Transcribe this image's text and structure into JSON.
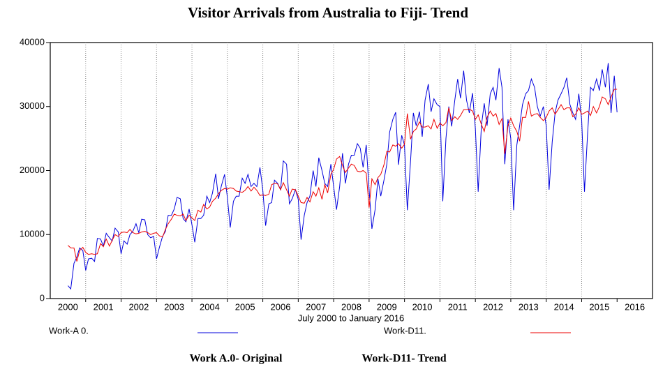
{
  "chart_data": {
    "type": "line",
    "title": "Visitor Arrivals from Australia to Fiji- Trend",
    "x_label": "July 2000  to January 2016",
    "captions": [
      "Work A.0- Original",
      "Work-D11- Trend"
    ],
    "legend": "bottom",
    "grid": true,
    "xlim": [
      2000,
      2017
    ],
    "xticks": [
      2000,
      2001,
      2002,
      2003,
      2004,
      2005,
      2006,
      2007,
      2008,
      2009,
      2010,
      2011,
      2012,
      2013,
      2014,
      2015,
      2016
    ],
    "ylim": [
      0,
      40000
    ],
    "yticks": [
      0,
      10000,
      20000,
      30000,
      40000
    ],
    "x": [
      2000.5,
      2000.58,
      2000.67,
      2000.75,
      2000.83,
      2000.92,
      2001,
      2001.08,
      2001.17,
      2001.25,
      2001.33,
      2001.42,
      2001.5,
      2001.58,
      2001.67,
      2001.75,
      2001.83,
      2001.92,
      2002,
      2002.08,
      2002.17,
      2002.25,
      2002.33,
      2002.42,
      2002.5,
      2002.58,
      2002.67,
      2002.75,
      2002.83,
      2002.92,
      2003,
      2003.08,
      2003.17,
      2003.25,
      2003.33,
      2003.42,
      2003.5,
      2003.58,
      2003.67,
      2003.75,
      2003.83,
      2003.92,
      2004,
      2004.08,
      2004.17,
      2004.25,
      2004.33,
      2004.42,
      2004.5,
      2004.58,
      2004.67,
      2004.75,
      2004.83,
      2004.92,
      2005,
      2005.08,
      2005.17,
      2005.25,
      2005.33,
      2005.42,
      2005.5,
      2005.58,
      2005.67,
      2005.75,
      2005.83,
      2005.92,
      2006,
      2006.08,
      2006.17,
      2006.25,
      2006.33,
      2006.42,
      2006.5,
      2006.58,
      2006.67,
      2006.75,
      2006.83,
      2006.92,
      2007,
      2007.08,
      2007.17,
      2007.25,
      2007.33,
      2007.42,
      2007.5,
      2007.58,
      2007.67,
      2007.75,
      2007.83,
      2007.92,
      2008,
      2008.08,
      2008.17,
      2008.25,
      2008.33,
      2008.42,
      2008.5,
      2008.58,
      2008.67,
      2008.75,
      2008.83,
      2008.92,
      2009,
      2009.08,
      2009.17,
      2009.25,
      2009.33,
      2009.42,
      2009.5,
      2009.58,
      2009.67,
      2009.75,
      2009.83,
      2009.92,
      2010,
      2010.08,
      2010.17,
      2010.25,
      2010.33,
      2010.42,
      2010.5,
      2010.58,
      2010.67,
      2010.75,
      2010.83,
      2010.92,
      2011,
      2011.08,
      2011.17,
      2011.25,
      2011.33,
      2011.42,
      2011.5,
      2011.58,
      2011.67,
      2011.75,
      2011.83,
      2011.92,
      2012,
      2012.08,
      2012.17,
      2012.25,
      2012.33,
      2012.42,
      2012.5,
      2012.58,
      2012.67,
      2012.75,
      2012.83,
      2012.92,
      2013,
      2013.08,
      2013.17,
      2013.25,
      2013.33,
      2013.42,
      2013.5,
      2013.58,
      2013.67,
      2013.75,
      2013.83,
      2013.92,
      2014,
      2014.08,
      2014.17,
      2014.25,
      2014.33,
      2014.42,
      2014.5,
      2014.58,
      2014.67,
      2014.75,
      2014.83,
      2014.92,
      2015,
      2015.08,
      2015.17,
      2015.25,
      2015.33,
      2015.42,
      2015.5,
      2015.58,
      2015.67,
      2015.75,
      2015.83,
      2015.92,
      2016
    ],
    "series": [
      {
        "name": "Work-A 0.",
        "color": "#0000dd",
        "values": [
          2000,
          1500,
          5500,
          6500,
          7900,
          7500,
          4400,
          6200,
          6300,
          5800,
          9400,
          9300,
          8200,
          10200,
          9500,
          9000,
          11000,
          10400,
          7000,
          9000,
          8500,
          10000,
          10500,
          11700,
          10300,
          12400,
          12300,
          10000,
          9500,
          9700,
          6200,
          8000,
          9700,
          10500,
          13000,
          13000,
          14000,
          15800,
          15600,
          12500,
          12000,
          14000,
          11500,
          8800,
          12500,
          12500,
          13000,
          16000,
          15000,
          16500,
          19500,
          15600,
          17600,
          19400,
          15800,
          11100,
          15200,
          16000,
          16000,
          18800,
          18000,
          19400,
          17500,
          18000,
          17500,
          20500,
          16900,
          11400,
          14800,
          15000,
          18500,
          18000,
          17000,
          21500,
          21000,
          14800,
          15600,
          17000,
          15500,
          9200,
          13000,
          15000,
          16000,
          20000,
          17500,
          22000,
          20000,
          18000,
          17500,
          21000,
          17500,
          13900,
          17500,
          22700,
          18000,
          21000,
          22400,
          22400,
          24200,
          23500,
          20500,
          24000,
          17000,
          10900,
          13900,
          18700,
          16000,
          18500,
          21000,
          26000,
          28000,
          29100,
          20900,
          25500,
          24000,
          13800,
          21500,
          29000,
          27000,
          29200,
          25300,
          31000,
          33500,
          29200,
          31200,
          30300,
          30000,
          15200,
          25000,
          30000,
          26900,
          31000,
          34300,
          31300,
          35600,
          31000,
          29000,
          32100,
          26500,
          16700,
          27000,
          30500,
          27000,
          32000,
          33000,
          31000,
          36000,
          33000,
          21000,
          28000,
          25000,
          13800,
          24000,
          27000,
          30300,
          32000,
          32500,
          34300,
          33000,
          30000,
          28500,
          30000,
          27000,
          17000,
          24500,
          29000,
          31000,
          32000,
          33000,
          34500,
          30300,
          29000,
          28000,
          32000,
          27900,
          16700,
          26000,
          33000,
          32500,
          34300,
          32500,
          35800,
          33000,
          36800,
          29000,
          34800,
          29100
        ]
      },
      {
        "name": "Work-D11.",
        "color": "#ee0000",
        "values": [
          8300,
          7900,
          7900,
          5800,
          7500,
          8000,
          7200,
          6900,
          7000,
          6900,
          7000,
          8600,
          8100,
          9300,
          8200,
          9100,
          10000,
          9700,
          10300,
          10400,
          10300,
          10800,
          10300,
          10100,
          10200,
          10400,
          10500,
          10300,
          10000,
          10200,
          10300,
          9800,
          9600,
          10800,
          11700,
          12400,
          13200,
          13000,
          12900,
          13200,
          12200,
          13000,
          12600,
          12200,
          13800,
          13500,
          14700,
          14000,
          14300,
          15200,
          15700,
          16400,
          16900,
          17200,
          17100,
          17300,
          17200,
          16800,
          16700,
          16600,
          16900,
          17500,
          16800,
          17400,
          16900,
          16100,
          16200,
          16100,
          16300,
          17800,
          18000,
          17900,
          17000,
          18100,
          17000,
          16000,
          17100,
          17000,
          16000,
          15000,
          14900,
          15800,
          15100,
          16700,
          16000,
          17300,
          15500,
          17800,
          16500,
          19400,
          20200,
          21800,
          22200,
          20800,
          19700,
          20400,
          21000,
          20800,
          19900,
          19800,
          20000,
          19600,
          14200,
          18700,
          17800,
          18900,
          19400,
          20900,
          23000,
          22900,
          24000,
          23800,
          24200,
          23500,
          24100,
          28900,
          24900,
          26100,
          26500,
          27600,
          26800,
          26800,
          27000,
          26500,
          28000,
          26600,
          27400,
          27000,
          27500,
          29800,
          27800,
          28400,
          28000,
          28600,
          29500,
          29500,
          29600,
          29300,
          28000,
          28700,
          27200,
          26100,
          28300,
          29300,
          28500,
          28900,
          27200,
          28100,
          22600,
          27000,
          28200,
          27000,
          26100,
          24600,
          28300,
          28300,
          30800,
          28500,
          28800,
          28900,
          28300,
          27800,
          28300,
          29300,
          29800,
          28800,
          29500,
          30300,
          29500,
          29800,
          29800,
          28400,
          28800,
          29800,
          28800,
          29000,
          29300,
          28600,
          30000,
          29000,
          30000,
          31500,
          31200,
          30300,
          31500,
          32700,
          32700
        ]
      }
    ]
  }
}
